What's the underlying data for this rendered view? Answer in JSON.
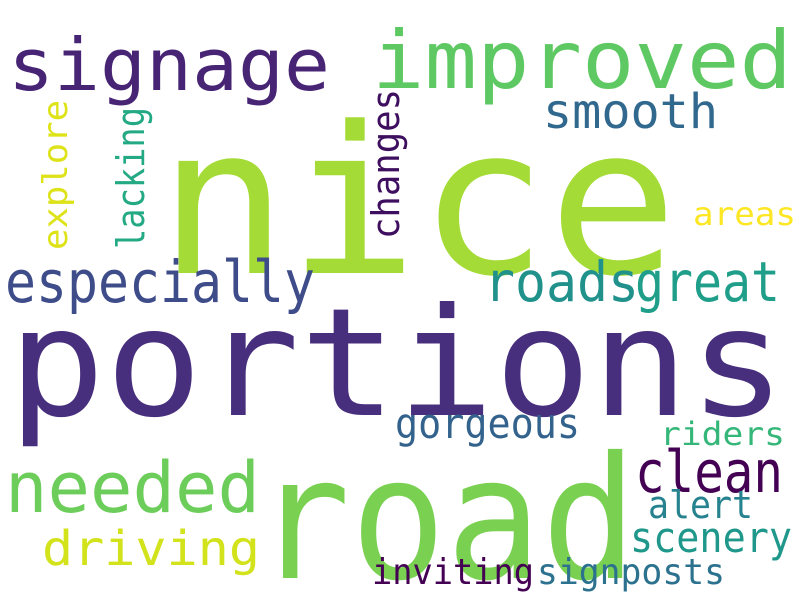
{
  "word_cloud": {
    "words": [
      {
        "text": "nice",
        "color": "#a5db36"
      },
      {
        "text": "portions",
        "color": "#472f7d"
      },
      {
        "text": "road",
        "color": "#7ad151"
      },
      {
        "text": "signage",
        "color": "#482475"
      },
      {
        "text": "improved",
        "color": "#5ec962"
      },
      {
        "text": "especially",
        "color": "#3e4c8a"
      },
      {
        "text": "roads",
        "color": "#21918c"
      },
      {
        "text": "great",
        "color": "#1f9e89"
      },
      {
        "text": "needed",
        "color": "#6ccd5a"
      },
      {
        "text": "clean",
        "color": "#440154"
      },
      {
        "text": "smooth",
        "color": "#31688e"
      },
      {
        "text": "driving",
        "color": "#d2e21b"
      },
      {
        "text": "gorgeous",
        "color": "#33638d"
      },
      {
        "text": "scenery",
        "color": "#1f988b"
      },
      {
        "text": "changes",
        "color": "#3f0f5f"
      },
      {
        "text": "lacking",
        "color": "#23a983"
      },
      {
        "text": "explore",
        "color": "#dde318"
      },
      {
        "text": "areas",
        "color": "#fde725"
      },
      {
        "text": "riders",
        "color": "#35b779"
      },
      {
        "text": "alert",
        "color": "#26828e"
      },
      {
        "text": "inviting",
        "color": "#440154"
      },
      {
        "text": "signposts",
        "color": "#2c728e"
      }
    ]
  }
}
